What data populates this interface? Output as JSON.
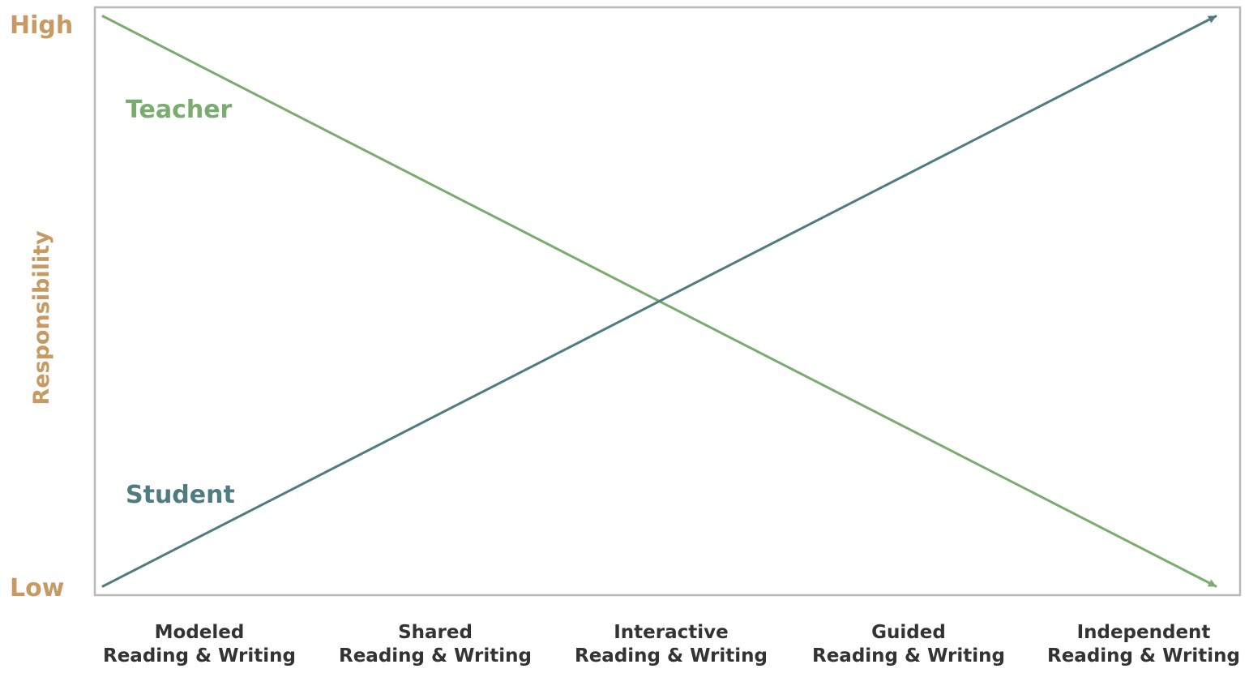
{
  "chart_data": {
    "type": "line",
    "title": "",
    "xlabel": "",
    "ylabel": "Responsibility",
    "y_ticks": [
      "High",
      "Low"
    ],
    "ylim": [
      0,
      1
    ],
    "categories": [
      [
        "Modeled",
        "Reading & Writing"
      ],
      [
        "Shared",
        "Reading & Writing"
      ],
      [
        "Interactive",
        "Reading & Writing"
      ],
      [
        "Guided",
        "Reading & Writing"
      ],
      [
        "Independent",
        "Reading & Writing"
      ]
    ],
    "series": [
      {
        "name": "Teacher",
        "x": [
          0,
          1
        ],
        "y": [
          1,
          0
        ],
        "color": "#79ac6e",
        "arrow_end": true
      },
      {
        "name": "Student",
        "x": [
          0,
          1
        ],
        "y": [
          0,
          1
        ],
        "color": "#4f7c80",
        "arrow_end": true
      }
    ],
    "grid": false,
    "legend": "inline-left"
  },
  "colors": {
    "axis_text": "#c79a63",
    "category_text": "#333333",
    "frame": "#b8b8b8"
  }
}
